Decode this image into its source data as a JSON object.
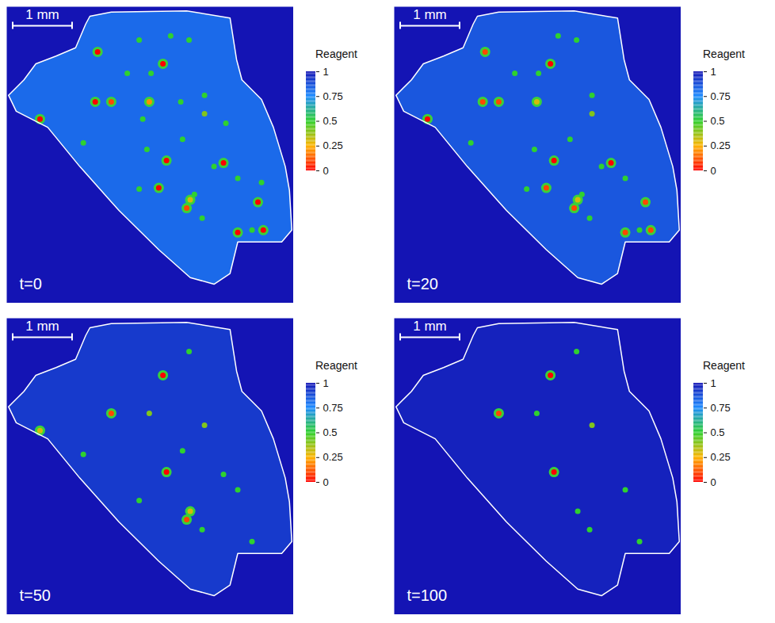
{
  "chart_data": [
    {
      "type": "heatmap",
      "title": "t=0",
      "xlim": [
        0,
        4.83
      ],
      "ylim": [
        0,
        4.99
      ],
      "tick_labels": false,
      "outside_value": 1,
      "inside_value": 0.82,
      "colorbar": {
        "label": "Reagent",
        "range": [
          0,
          1
        ],
        "ticks": [
          0,
          0.25,
          0.5,
          0.75,
          1
        ]
      },
      "scale_bar": {
        "label": "1 mm",
        "length": 1
      },
      "outline": [
        [
          1.4,
          0.16
        ],
        [
          1.76,
          0.09
        ],
        [
          3.03,
          0.07
        ],
        [
          3.76,
          0.19
        ],
        [
          3.87,
          0.89
        ],
        [
          3.96,
          1.23
        ],
        [
          4.29,
          1.56
        ],
        [
          4.49,
          2.03
        ],
        [
          4.69,
          2.69
        ],
        [
          4.76,
          3.09
        ],
        [
          4.8,
          3.76
        ],
        [
          4.63,
          3.96
        ],
        [
          3.89,
          3.96
        ],
        [
          3.76,
          4.49
        ],
        [
          3.49,
          4.67
        ],
        [
          3.09,
          4.56
        ],
        [
          2.56,
          4.09
        ],
        [
          1.89,
          3.43
        ],
        [
          1.23,
          2.69
        ],
        [
          0.69,
          2.03
        ],
        [
          0.16,
          1.76
        ],
        [
          0.03,
          1.49
        ],
        [
          0.29,
          1.23
        ],
        [
          0.49,
          0.96
        ],
        [
          0.83,
          0.83
        ],
        [
          1.16,
          0.69
        ],
        [
          1.33,
          0.29
        ]
      ],
      "spots": [
        [
          1.53,
          0.76,
          0
        ],
        [
          2.63,
          0.96,
          0
        ],
        [
          2.03,
          1.12,
          0.5
        ],
        [
          2.43,
          1.12,
          0.5
        ],
        [
          2.23,
          0.56,
          0.5
        ],
        [
          3.07,
          0.56,
          0.5
        ],
        [
          2.76,
          0.49,
          0.5
        ],
        [
          1.49,
          1.6,
          0
        ],
        [
          1.76,
          1.6,
          0.1
        ],
        [
          2.4,
          1.6,
          0.2
        ],
        [
          3.33,
          1.49,
          0.5
        ],
        [
          2.93,
          1.6,
          0.5
        ],
        [
          3.33,
          1.8,
          0.4
        ],
        [
          2.69,
          2.59,
          0
        ],
        [
          2.36,
          2.4,
          0.5
        ],
        [
          3.65,
          2.63,
          0
        ],
        [
          2.56,
          3.05,
          0
        ],
        [
          2.23,
          3.07,
          0.5
        ],
        [
          3.09,
          3.25,
          0.3
        ],
        [
          3.03,
          3.39,
          0.1
        ],
        [
          3.16,
          3.16,
          0.5
        ],
        [
          3.29,
          3.56,
          0.5
        ],
        [
          3.89,
          3.8,
          0
        ],
        [
          4.32,
          3.76,
          0
        ],
        [
          4.13,
          3.76,
          0.5
        ],
        [
          4.23,
          3.29,
          0
        ],
        [
          3.89,
          2.89,
          0.5
        ],
        [
          0.56,
          1.89,
          0
        ],
        [
          2.96,
          2.23,
          0.5
        ],
        [
          1.29,
          2.29,
          0.5
        ],
        [
          3.49,
          2.69,
          0.5
        ],
        [
          3.69,
          1.96,
          0.5
        ],
        [
          4.29,
          2.96,
          0.5
        ],
        [
          2.29,
          1.89,
          0.5
        ]
      ]
    },
    {
      "type": "heatmap",
      "title": "t=20",
      "xlim": [
        0,
        4.83
      ],
      "ylim": [
        0,
        4.99
      ],
      "tick_labels": false,
      "outside_value": 1,
      "inside_value": 0.86,
      "colorbar": {
        "label": "Reagent",
        "range": [
          0,
          1
        ],
        "ticks": [
          0,
          0.25,
          0.5,
          0.75,
          1
        ]
      },
      "scale_bar": {
        "label": "1 mm",
        "length": 1
      },
      "outline": [
        [
          1.4,
          0.16
        ],
        [
          1.76,
          0.09
        ],
        [
          3.03,
          0.07
        ],
        [
          3.76,
          0.19
        ],
        [
          3.87,
          0.89
        ],
        [
          3.96,
          1.23
        ],
        [
          4.29,
          1.56
        ],
        [
          4.49,
          2.03
        ],
        [
          4.69,
          2.69
        ],
        [
          4.76,
          3.09
        ],
        [
          4.8,
          3.76
        ],
        [
          4.63,
          3.96
        ],
        [
          3.89,
          3.96
        ],
        [
          3.76,
          4.49
        ],
        [
          3.49,
          4.67
        ],
        [
          3.09,
          4.56
        ],
        [
          2.56,
          4.09
        ],
        [
          1.89,
          3.43
        ],
        [
          1.23,
          2.69
        ],
        [
          0.69,
          2.03
        ],
        [
          0.16,
          1.76
        ],
        [
          0.03,
          1.49
        ],
        [
          0.29,
          1.23
        ],
        [
          0.49,
          0.96
        ],
        [
          0.83,
          0.83
        ],
        [
          1.16,
          0.69
        ],
        [
          1.33,
          0.29
        ]
      ],
      "spots": [
        [
          1.53,
          0.76,
          0.1
        ],
        [
          2.63,
          0.96,
          0
        ],
        [
          2.03,
          1.12,
          0.5
        ],
        [
          2.43,
          1.12,
          0.5
        ],
        [
          3.07,
          0.56,
          0.5
        ],
        [
          2.76,
          0.49,
          0.5
        ],
        [
          1.49,
          1.6,
          0.1
        ],
        [
          1.76,
          1.6,
          0.1
        ],
        [
          2.4,
          1.6,
          0.3
        ],
        [
          3.33,
          1.49,
          0.5
        ],
        [
          3.33,
          1.8,
          0.4
        ],
        [
          2.69,
          2.59,
          0
        ],
        [
          2.36,
          2.4,
          0.5
        ],
        [
          3.65,
          2.63,
          0
        ],
        [
          2.56,
          3.05,
          0.1
        ],
        [
          2.23,
          3.07,
          0.5
        ],
        [
          3.09,
          3.25,
          0.3
        ],
        [
          3.03,
          3.39,
          0.1
        ],
        [
          3.16,
          3.16,
          0.5
        ],
        [
          3.29,
          3.56,
          0.5
        ],
        [
          3.89,
          3.8,
          0.1
        ],
        [
          4.32,
          3.76,
          0.1
        ],
        [
          4.13,
          3.76,
          0.5
        ],
        [
          4.23,
          3.29,
          0.1
        ],
        [
          3.89,
          2.89,
          0.5
        ],
        [
          0.56,
          1.89,
          0
        ],
        [
          2.96,
          2.23,
          0.5
        ],
        [
          1.29,
          2.29,
          0.5
        ],
        [
          3.49,
          2.69,
          0.5
        ]
      ]
    },
    {
      "type": "heatmap",
      "title": "t=50",
      "xlim": [
        0,
        4.83
      ],
      "ylim": [
        0,
        4.99
      ],
      "tick_labels": false,
      "outside_value": 1,
      "inside_value": 0.92,
      "colorbar": {
        "label": "Reagent",
        "range": [
          0,
          1
        ],
        "ticks": [
          0,
          0.25,
          0.5,
          0.75,
          1
        ]
      },
      "scale_bar": {
        "label": "1 mm",
        "length": 1
      },
      "outline": [
        [
          1.4,
          0.16
        ],
        [
          1.76,
          0.09
        ],
        [
          3.03,
          0.07
        ],
        [
          3.76,
          0.19
        ],
        [
          3.87,
          0.89
        ],
        [
          3.96,
          1.23
        ],
        [
          4.29,
          1.56
        ],
        [
          4.49,
          2.03
        ],
        [
          4.69,
          2.69
        ],
        [
          4.76,
          3.09
        ],
        [
          4.8,
          3.76
        ],
        [
          4.63,
          3.96
        ],
        [
          3.89,
          3.96
        ],
        [
          3.76,
          4.49
        ],
        [
          3.49,
          4.67
        ],
        [
          3.09,
          4.56
        ],
        [
          2.56,
          4.09
        ],
        [
          1.89,
          3.43
        ],
        [
          1.23,
          2.69
        ],
        [
          0.69,
          2.03
        ],
        [
          0.16,
          1.76
        ],
        [
          0.03,
          1.49
        ],
        [
          0.29,
          1.23
        ],
        [
          0.49,
          0.96
        ],
        [
          0.83,
          0.83
        ],
        [
          1.16,
          0.69
        ],
        [
          1.33,
          0.29
        ]
      ],
      "spots": [
        [
          2.63,
          0.96,
          0
        ],
        [
          1.76,
          1.6,
          0.1
        ],
        [
          2.4,
          1.6,
          0.4
        ],
        [
          3.33,
          1.8,
          0.4
        ],
        [
          2.69,
          2.59,
          0
        ],
        [
          3.03,
          3.39,
          0.1
        ],
        [
          3.09,
          3.25,
          0.3
        ],
        [
          3.29,
          3.56,
          0.5
        ],
        [
          4.13,
          3.76,
          0.5
        ],
        [
          3.89,
          2.89,
          0.5
        ],
        [
          1.29,
          2.29,
          0.5
        ],
        [
          0.56,
          1.89,
          0.3
        ],
        [
          2.23,
          3.07,
          0.5
        ],
        [
          3.07,
          0.56,
          0.5
        ],
        [
          3.65,
          2.63,
          0.5
        ],
        [
          2.96,
          2.23,
          0.5
        ]
      ]
    },
    {
      "type": "heatmap",
      "title": "t=100",
      "xlim": [
        0,
        4.83
      ],
      "ylim": [
        0,
        4.99
      ],
      "tick_labels": false,
      "outside_value": 1,
      "inside_value": 0.97,
      "colorbar": {
        "label": "Reagent",
        "range": [
          0,
          1
        ],
        "ticks": [
          0,
          0.25,
          0.5,
          0.75,
          1
        ]
      },
      "scale_bar": {
        "label": "1 mm",
        "length": 1
      },
      "outline": [
        [
          1.4,
          0.16
        ],
        [
          1.76,
          0.09
        ],
        [
          3.03,
          0.07
        ],
        [
          3.76,
          0.19
        ],
        [
          3.87,
          0.89
        ],
        [
          3.96,
          1.23
        ],
        [
          4.29,
          1.56
        ],
        [
          4.49,
          2.03
        ],
        [
          4.69,
          2.69
        ],
        [
          4.76,
          3.09
        ],
        [
          4.8,
          3.76
        ],
        [
          4.63,
          3.96
        ],
        [
          3.89,
          3.96
        ],
        [
          3.76,
          4.49
        ],
        [
          3.49,
          4.67
        ],
        [
          3.09,
          4.56
        ],
        [
          2.56,
          4.09
        ],
        [
          1.89,
          3.43
        ],
        [
          1.23,
          2.69
        ],
        [
          0.69,
          2.03
        ],
        [
          0.16,
          1.76
        ],
        [
          0.03,
          1.49
        ],
        [
          0.29,
          1.23
        ],
        [
          0.49,
          0.96
        ],
        [
          0.83,
          0.83
        ],
        [
          1.16,
          0.69
        ],
        [
          1.33,
          0.29
        ]
      ],
      "spots": [
        [
          2.63,
          0.96,
          0
        ],
        [
          1.76,
          1.6,
          0.1
        ],
        [
          2.69,
          2.59,
          0
        ],
        [
          3.33,
          1.8,
          0.4
        ],
        [
          2.4,
          1.6,
          0.5
        ],
        [
          3.09,
          3.25,
          0.5
        ],
        [
          3.29,
          3.56,
          0.5
        ],
        [
          4.13,
          3.76,
          0.5
        ],
        [
          3.07,
          0.56,
          0.5
        ],
        [
          3.89,
          2.89,
          0.5
        ]
      ]
    }
  ]
}
